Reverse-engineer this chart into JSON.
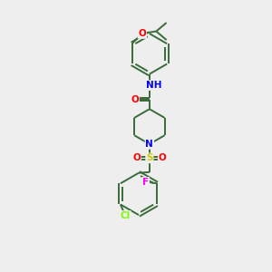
{
  "background_color": "#eeeeee",
  "bond_color": "#3a6b3a",
  "atom_colors": {
    "N": "#0000ff",
    "O": "#ff0000",
    "F": "#ff00ff",
    "Cl": "#7cfc00",
    "S": "#cccc00",
    "C": "#3a6b3a",
    "H": "#3a6b3a"
  },
  "figsize": [
    3.0,
    3.0
  ],
  "dpi": 100
}
